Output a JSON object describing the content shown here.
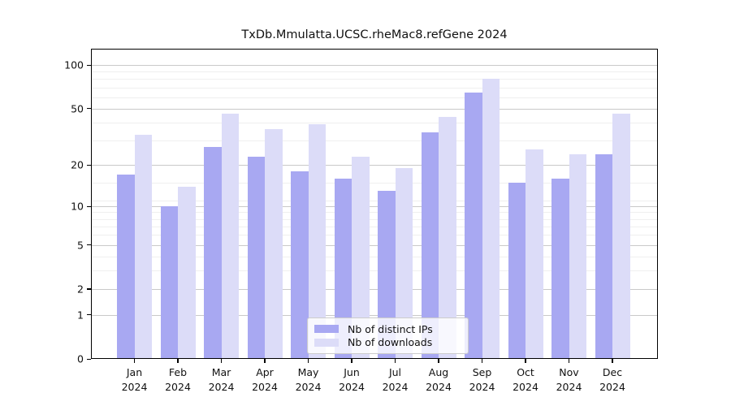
{
  "title": "TxDb.Mmulatta.UCSC.rheMac8.refGene 2024",
  "colors": {
    "distinct_ips": "#a8a8f2",
    "downloads": "#dcdcf8",
    "grid_major": "#c9c9c9",
    "grid_minor": "#efefef",
    "axis": "#000000"
  },
  "legend": {
    "items": [
      {
        "label": "Nb of distinct IPs",
        "color_key": "distinct_ips"
      },
      {
        "label": "Nb of downloads",
        "color_key": "downloads"
      }
    ]
  },
  "chart_data": {
    "type": "bar",
    "scale": "log1p",
    "title": "TxDb.Mmulatta.UCSC.rheMac8.refGene 2024",
    "xlabel": "",
    "ylabel": "",
    "categories": [
      "Jan",
      "Feb",
      "Mar",
      "Apr",
      "May",
      "Jun",
      "Jul",
      "Aug",
      "Sep",
      "Oct",
      "Nov",
      "Dec"
    ],
    "year_label": "2024",
    "series": [
      {
        "name": "Nb of distinct IPs",
        "color_key": "distinct_ips",
        "values": [
          17,
          10,
          27,
          23,
          18,
          16,
          13,
          34,
          65,
          15,
          16,
          24
        ]
      },
      {
        "name": "Nb of downloads",
        "color_key": "downloads",
        "values": [
          33,
          14,
          46,
          36,
          39,
          23,
          19,
          44,
          80,
          26,
          24,
          46
        ]
      }
    ],
    "yticks": [
      0,
      1,
      2,
      5,
      10,
      20,
      50,
      100
    ],
    "minor_yticks": [
      3,
      4,
      6,
      7,
      8,
      9,
      11,
      15,
      30,
      40,
      60,
      70,
      80,
      90
    ],
    "ylim": [
      0,
      130
    ],
    "grid": "on",
    "legend_position": "lower center"
  }
}
